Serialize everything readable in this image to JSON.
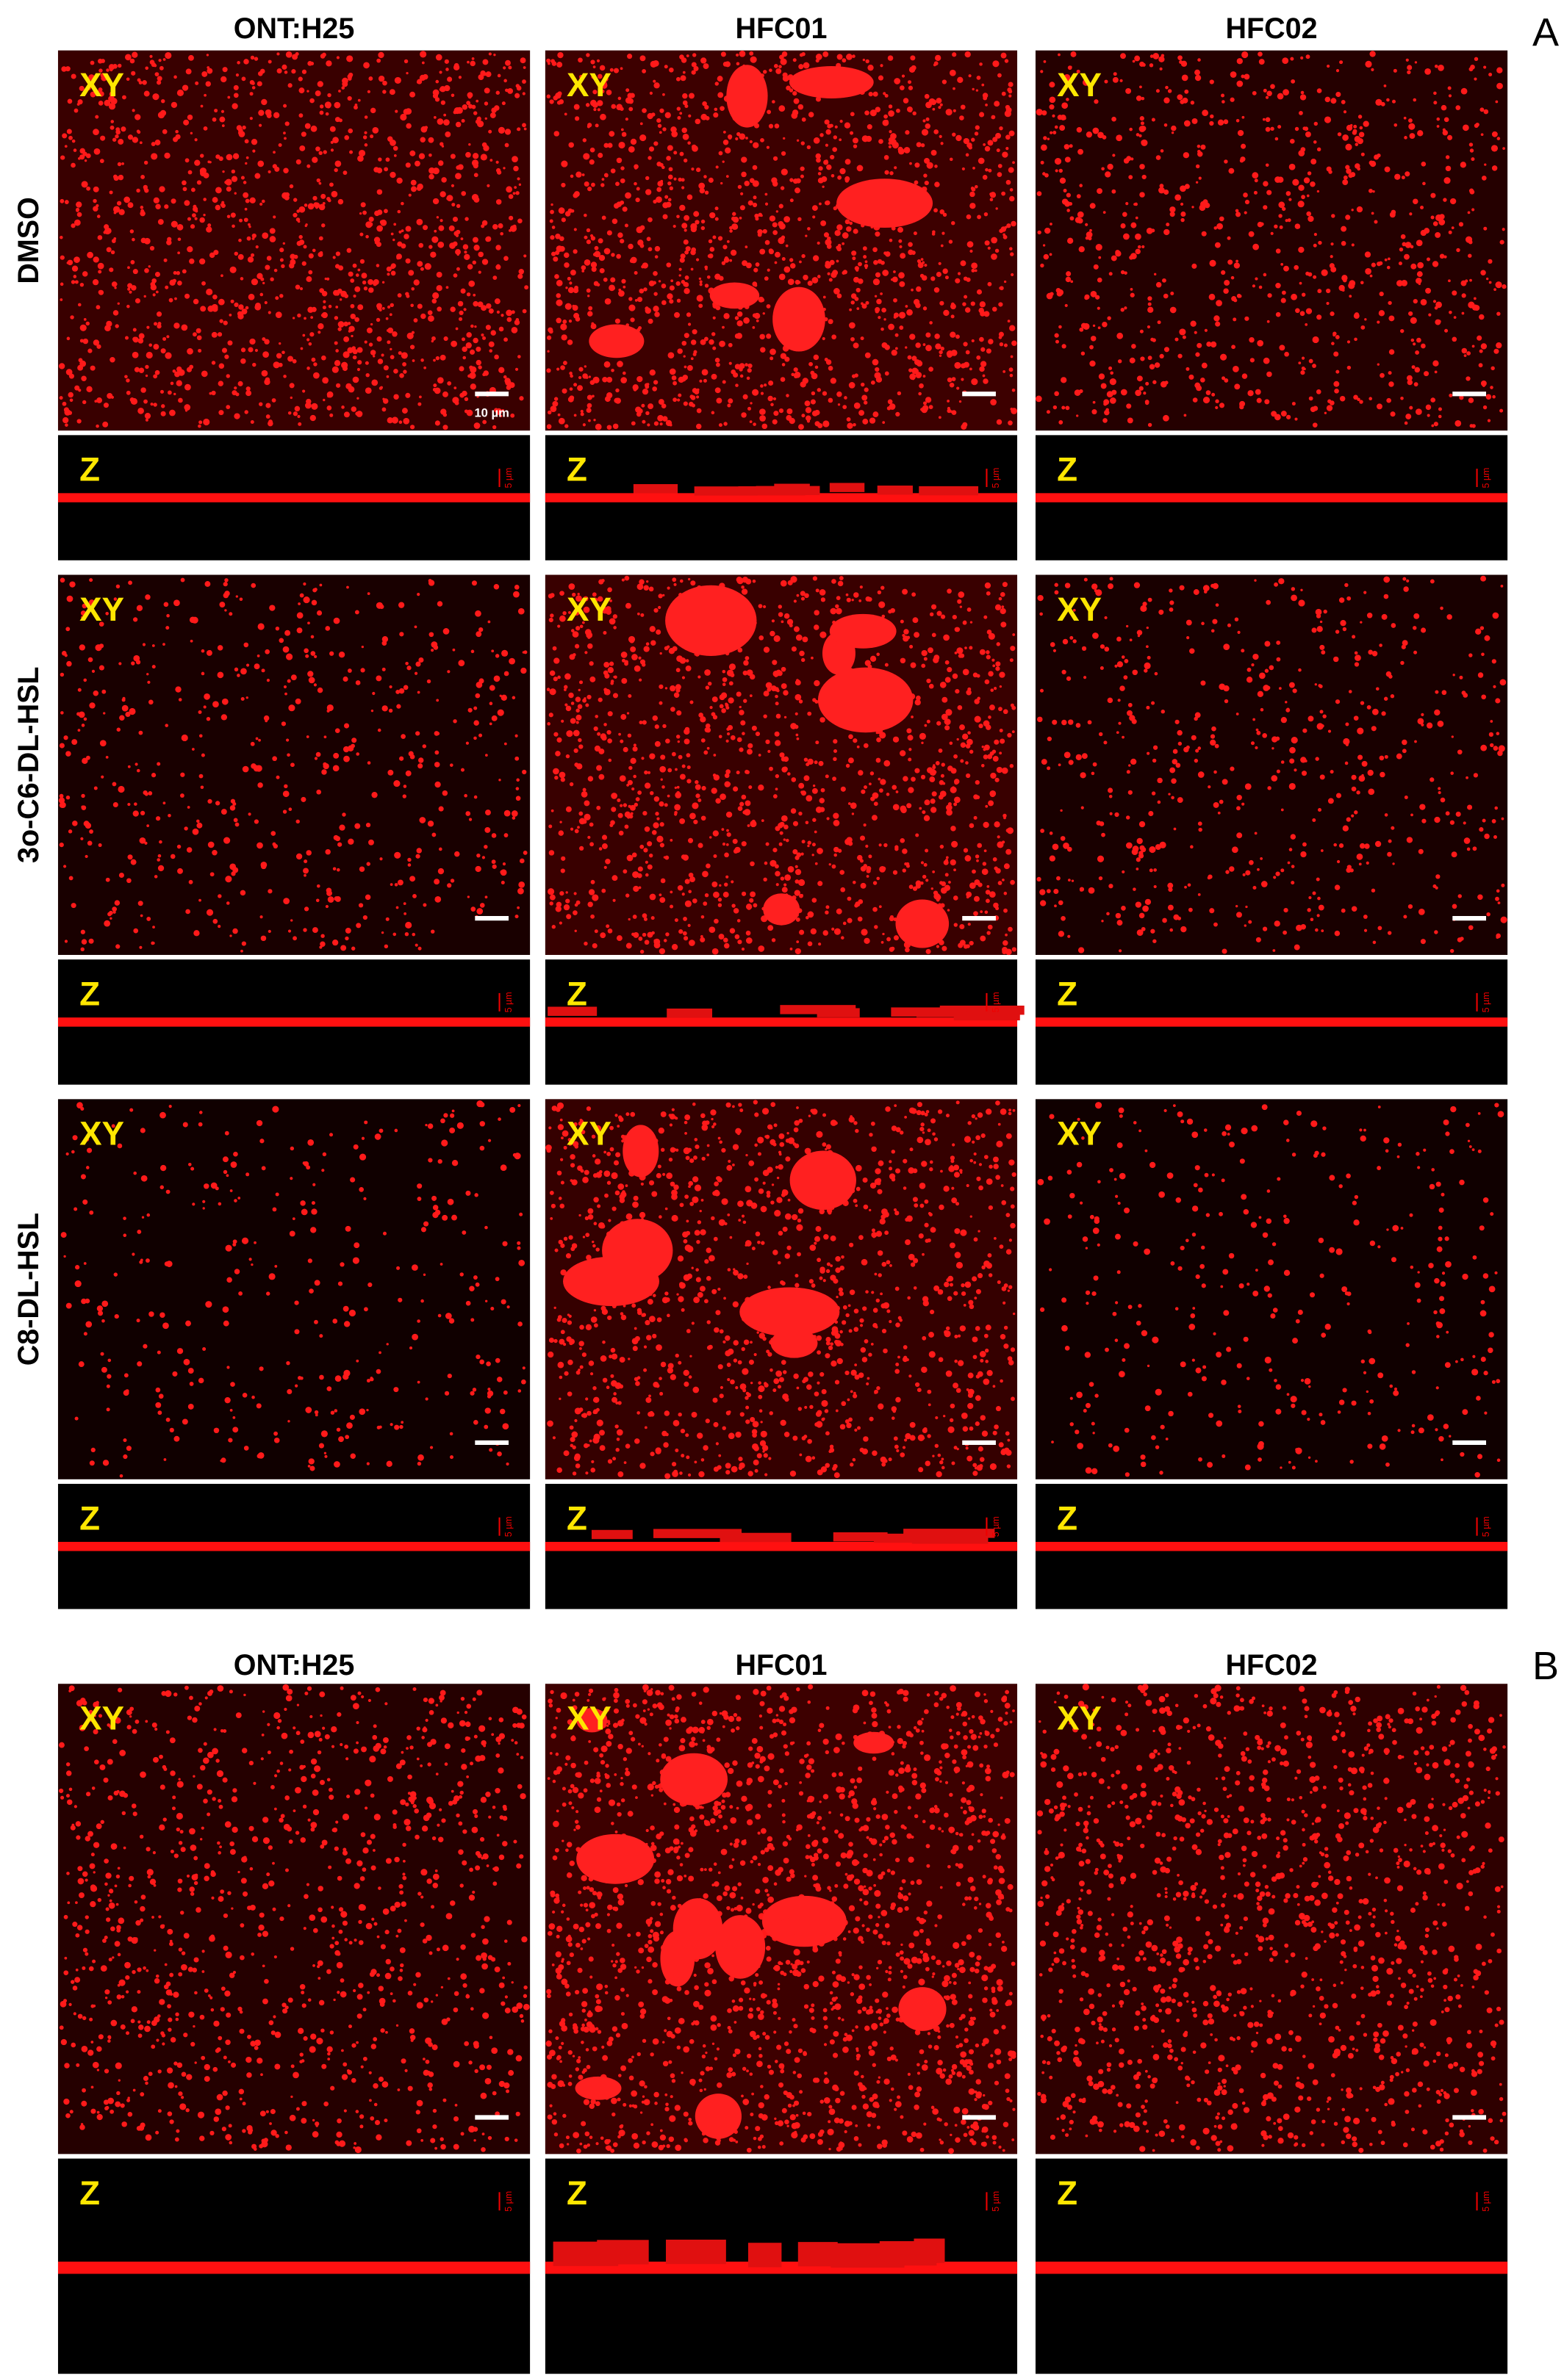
{
  "panels": [
    {
      "label": "A",
      "columns": [
        "ONT:H25",
        "HFC01",
        "HFC02"
      ],
      "rows": [
        {
          "label": "DMSO",
          "cells": [
            {
              "xy": "XY",
              "z": "Z",
              "scale": "10 µm",
              "z_scale": "5 µm"
            },
            {
              "xy": "XY",
              "z": "Z",
              "z_scale": "5 µm"
            },
            {
              "xy": "XY",
              "z": "Z",
              "z_scale": "5 µm"
            }
          ]
        },
        {
          "label": "3o-C6-DL-HSL",
          "cells": [
            {
              "xy": "XY",
              "z": "Z",
              "z_scale": "5 µm"
            },
            {
              "xy": "XY",
              "z": "Z",
              "z_scale": "5 µm"
            },
            {
              "xy": "XY",
              "z": "Z",
              "z_scale": "5 µm"
            }
          ]
        },
        {
          "label": "C8-DL-HSL",
          "cells": [
            {
              "xy": "XY",
              "z": "Z",
              "z_scale": "5 µm"
            },
            {
              "xy": "XY",
              "z": "Z",
              "z_scale": "5 µm"
            },
            {
              "xy": "XY",
              "z": "Z",
              "z_scale": "5 µm"
            }
          ]
        }
      ]
    },
    {
      "label": "B",
      "columns": [
        "ONT:H25",
        "HFC01",
        "HFC02"
      ],
      "rows": [
        {
          "cells": [
            {
              "xy": "XY",
              "z": "Z",
              "z_scale": "5 µm"
            },
            {
              "xy": "XY",
              "z": "Z",
              "z_scale": "5 µm"
            },
            {
              "xy": "XY",
              "z": "Z",
              "z_scale": "5 µm"
            }
          ]
        }
      ]
    }
  ]
}
